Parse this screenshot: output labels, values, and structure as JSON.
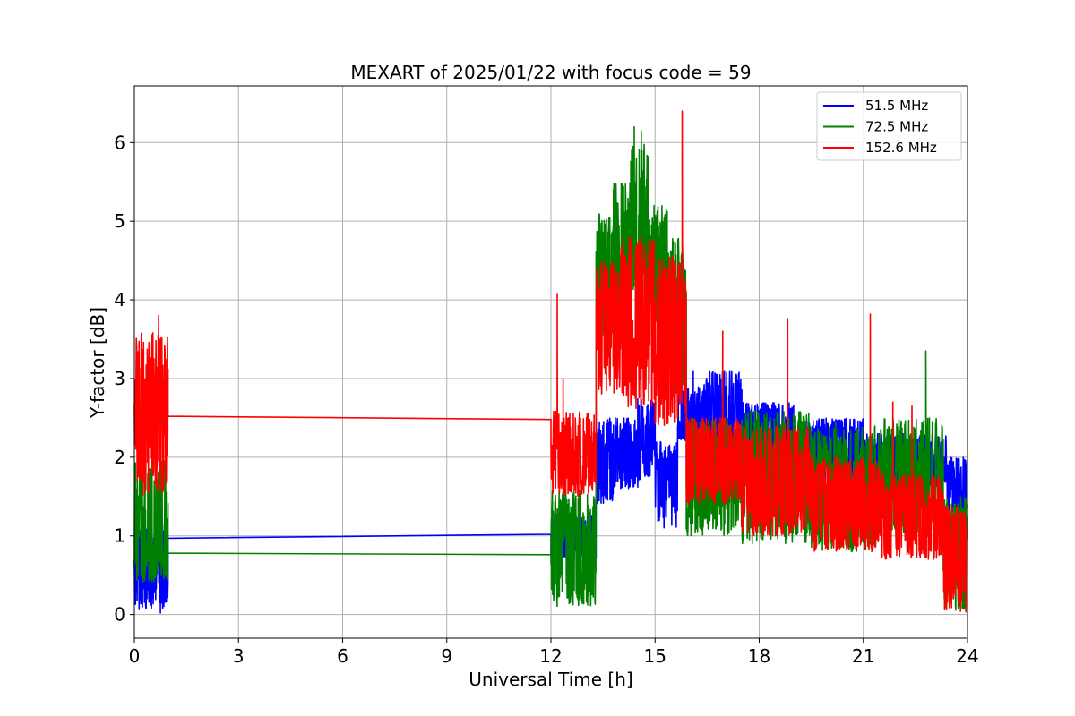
{
  "chart_data": {
    "type": "line",
    "title": "MEXART of 2025/01/22 with focus code = 59",
    "xlabel": "Universal Time [h]",
    "ylabel": "Y-factor [dB]",
    "xlim": [
      0,
      24
    ],
    "ylim": [
      -0.3,
      6.72
    ],
    "xticks": [
      0,
      3,
      6,
      9,
      12,
      15,
      18,
      21,
      24
    ],
    "yticks": [
      0,
      1,
      2,
      3,
      4,
      5,
      6
    ],
    "grid": true,
    "legend_position": "top-right",
    "series": [
      {
        "name": " 51.5 MHz",
        "color": "#0000ff",
        "segments": [
          {
            "range": [
              0,
              0.97
            ],
            "min": 0.05,
            "max": 1.15,
            "base": 0.65
          },
          {
            "connect": [
              [
                0.97,
                0.97
              ],
              [
                12.0,
                1.02
              ]
            ]
          },
          {
            "range": [
              12.0,
              13.3
            ],
            "min": 0.7,
            "max": 1.3,
            "base": 1.0
          },
          {
            "range": [
              13.3,
              13.8
            ],
            "min": 1.4,
            "max": 2.5,
            "base": 1.9
          },
          {
            "range": [
              13.8,
              14.5
            ],
            "min": 1.6,
            "max": 2.5,
            "base": 2.0
          },
          {
            "range": [
              14.5,
              15.0
            ],
            "min": 1.7,
            "max": 2.75,
            "base": 2.2
          },
          {
            "range": [
              15.0,
              15.65
            ],
            "min": 1.1,
            "max": 2.2,
            "base": 1.8
          },
          {
            "range": [
              15.65,
              16.4
            ],
            "min": 2.2,
            "max": 2.9,
            "base": 2.5
          },
          {
            "range": [
              16.4,
              17.5
            ],
            "min": 2.0,
            "max": 3.1,
            "base": 2.5
          },
          {
            "range": [
              17.5,
              19.0
            ],
            "min": 1.8,
            "max": 2.7,
            "base": 2.3
          },
          {
            "range": [
              19.0,
              21.0
            ],
            "min": 1.7,
            "max": 2.5,
            "base": 2.1
          },
          {
            "range": [
              21.0,
              23.4
            ],
            "min": 1.6,
            "max": 2.3,
            "base": 1.9
          },
          {
            "range": [
              23.4,
              24.0
            ],
            "min": 1.2,
            "max": 2.0,
            "base": 1.7
          }
        ],
        "spikes": [
          [
            0.75,
            0.02
          ],
          [
            16.1,
            3.1
          ]
        ]
      },
      {
        "name": " 72.5 MHz",
        "color": "#008000",
        "segments": [
          {
            "range": [
              0,
              0.97
            ],
            "min": 0.4,
            "max": 2.0,
            "base": 1.0
          },
          {
            "connect": [
              [
                0.97,
                0.78
              ],
              [
                12.0,
                0.76
              ]
            ]
          },
          {
            "range": [
              12.0,
              13.3
            ],
            "min": 0.1,
            "max": 1.6,
            "base": 0.8
          },
          {
            "range": [
              13.3,
              13.8
            ],
            "min": 3.4,
            "max": 5.1,
            "base": 4.3
          },
          {
            "range": [
              13.8,
              14.3
            ],
            "min": 3.6,
            "max": 5.5,
            "base": 4.7
          },
          {
            "range": [
              14.3,
              14.8
            ],
            "min": 4.0,
            "max": 6.0,
            "base": 5.0
          },
          {
            "range": [
              14.8,
              15.35
            ],
            "min": 3.5,
            "max": 5.2,
            "base": 4.5
          },
          {
            "range": [
              15.35,
              15.9
            ],
            "min": 2.8,
            "max": 4.8,
            "base": 3.9
          },
          {
            "range": [
              15.9,
              17.5
            ],
            "min": 1.0,
            "max": 2.5,
            "base": 1.8
          },
          {
            "range": [
              17.5,
              19.5
            ],
            "min": 0.9,
            "max": 2.6,
            "base": 1.7
          },
          {
            "range": [
              19.5,
              21.5
            ],
            "min": 0.8,
            "max": 2.4,
            "base": 1.6
          },
          {
            "range": [
              21.5,
              23.3
            ],
            "min": 1.0,
            "max": 2.5,
            "base": 1.8
          },
          {
            "range": [
              23.3,
              24.0
            ],
            "min": 0.05,
            "max": 1.5,
            "base": 0.9
          }
        ],
        "spikes": [
          [
            14.4,
            6.2
          ],
          [
            14.6,
            6.15
          ],
          [
            22.8,
            3.35
          ],
          [
            20.2,
            2.45
          ]
        ]
      },
      {
        "name": "152.6 MHz",
        "color": "#ff0000",
        "segments": [
          {
            "range": [
              0,
              0.97
            ],
            "min": 1.5,
            "max": 3.6,
            "base": 2.5
          },
          {
            "connect": [
              [
                0.97,
                2.52
              ],
              [
                12.0,
                2.48
              ]
            ]
          },
          {
            "range": [
              12.0,
              13.3
            ],
            "min": 1.5,
            "max": 2.6,
            "base": 2.0
          },
          {
            "range": [
              13.3,
              14.0
            ],
            "min": 2.8,
            "max": 4.5,
            "base": 3.7
          },
          {
            "range": [
              14.0,
              15.0
            ],
            "min": 2.6,
            "max": 4.8,
            "base": 3.8
          },
          {
            "range": [
              15.0,
              15.9
            ],
            "min": 2.4,
            "max": 4.6,
            "base": 3.6
          },
          {
            "range": [
              15.9,
              17.5
            ],
            "min": 1.4,
            "max": 2.5,
            "base": 2.0
          },
          {
            "range": [
              17.5,
              19.5
            ],
            "min": 1.0,
            "max": 2.4,
            "base": 1.7
          },
          {
            "range": [
              19.5,
              21.5
            ],
            "min": 0.8,
            "max": 2.0,
            "base": 1.4
          },
          {
            "range": [
              21.5,
              23.3
            ],
            "min": 0.7,
            "max": 1.8,
            "base": 1.3
          },
          {
            "range": [
              23.3,
              24.0
            ],
            "min": 0.0,
            "max": 1.4,
            "base": 0.8
          }
        ],
        "spikes": [
          [
            0.7,
            3.8
          ],
          [
            12.18,
            4.08
          ],
          [
            12.35,
            3.0
          ],
          [
            15.78,
            6.4
          ],
          [
            16.95,
            3.6
          ],
          [
            18.82,
            3.76
          ],
          [
            21.2,
            3.82
          ],
          [
            21.85,
            2.7
          ],
          [
            22.4,
            2.65
          ]
        ]
      }
    ]
  }
}
